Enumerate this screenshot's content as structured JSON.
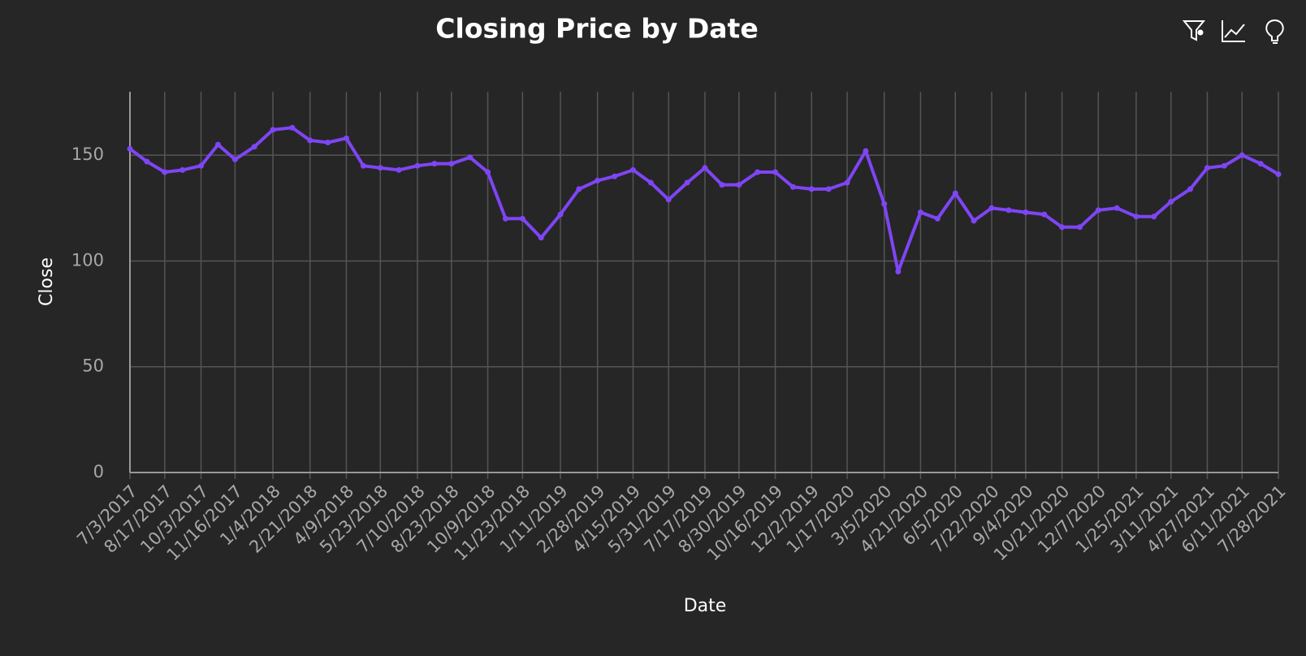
{
  "chart_data": {
    "type": "line",
    "title": "Closing Price by Date",
    "x_label": "Date",
    "y_label": "Close",
    "x": [
      "7/3/2017",
      "7/25/2017",
      "8/17/2017",
      "9/9/2017",
      "10/3/2017",
      "10/25/2017",
      "11/16/2017",
      "12/11/2017",
      "1/4/2018",
      "1/29/2018",
      "2/21/2018",
      "3/16/2018",
      "4/9/2018",
      "5/1/2018",
      "5/23/2018",
      "6/16/2018",
      "7/10/2018",
      "8/1/2018",
      "8/23/2018",
      "9/16/2018",
      "10/9/2018",
      "11/1/2018",
      "11/23/2018",
      "12/17/2018",
      "1/11/2019",
      "2/4/2019",
      "2/28/2019",
      "3/22/2019",
      "4/15/2019",
      "5/8/2019",
      "5/31/2019",
      "6/24/2019",
      "7/17/2019",
      "8/8/2019",
      "8/30/2019",
      "9/23/2019",
      "10/16/2019",
      "11/8/2019",
      "12/2/2019",
      "12/24/2019",
      "1/17/2020",
      "2/10/2020",
      "3/5/2020",
      "3/23/2020",
      "4/21/2020",
      "5/13/2020",
      "6/5/2020",
      "6/29/2020",
      "7/22/2020",
      "8/13/2020",
      "9/4/2020",
      "9/28/2020",
      "10/21/2020",
      "11/13/2020",
      "12/7/2020",
      "12/31/2020",
      "1/25/2021",
      "2/17/2021",
      "3/11/2021",
      "4/5/2021",
      "4/27/2021",
      "5/19/2021",
      "6/11/2021",
      "7/5/2021",
      "7/28/2021"
    ],
    "series": [
      {
        "name": "Close",
        "color": "#7f45f5",
        "values": [
          153,
          147,
          142,
          143,
          145,
          155,
          148,
          154,
          162,
          163,
          157,
          156,
          158,
          145,
          144,
          143,
          145,
          146,
          146,
          149,
          142,
          120,
          120,
          111,
          122,
          134,
          138,
          140,
          143,
          137,
          129,
          137,
          144,
          136,
          136,
          142,
          142,
          135,
          134,
          134,
          137,
          152,
          127,
          95,
          123,
          120,
          132,
          119,
          125,
          124,
          123,
          122,
          116,
          116,
          124,
          125,
          121,
          121,
          128,
          134,
          144,
          145,
          150,
          146,
          141
        ]
      }
    ],
    "xlim": [
      "7/3/2017",
      "7/28/2021"
    ],
    "xticks": [
      "7/3/2017",
      "8/17/2017",
      "10/3/2017",
      "11/16/2017",
      "1/4/2018",
      "2/21/2018",
      "4/9/2018",
      "5/23/2018",
      "7/10/2018",
      "8/23/2018",
      "10/9/2018",
      "11/23/2018",
      "1/11/2019",
      "2/28/2019",
      "4/15/2019",
      "5/31/2019",
      "7/17/2019",
      "8/30/2019",
      "10/16/2019",
      "12/2/2019",
      "1/17/2020",
      "3/5/2020",
      "4/21/2020",
      "6/5/2020",
      "7/22/2020",
      "9/4/2020",
      "10/21/2020",
      "12/7/2020",
      "1/25/2021",
      "3/11/2021",
      "4/27/2021",
      "6/11/2021",
      "7/28/2021"
    ],
    "ylim": [
      0,
      180
    ],
    "yticks": [
      0,
      50,
      100,
      150
    ],
    "grid": true
  }
}
